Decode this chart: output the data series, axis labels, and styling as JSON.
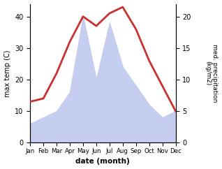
{
  "months": [
    "Jan",
    "Feb",
    "Mar",
    "Apr",
    "May",
    "Jun",
    "Jul",
    "Aug",
    "Sep",
    "Oct",
    "Nov",
    "Dec"
  ],
  "temperature": [
    13,
    14,
    22,
    32,
    40,
    37,
    41,
    43,
    36,
    26,
    18,
    10
  ],
  "precipitation": [
    3,
    4,
    5,
    8,
    20,
    10,
    19,
    12,
    9,
    6,
    4,
    5
  ],
  "temp_color": "#c93030",
  "precip_fill_color": "#c5cdf0",
  "background_color": "#ffffff",
  "temp_ylim": [
    0,
    44
  ],
  "precip_ylim": [
    0,
    22
  ],
  "temp_yticks": [
    0,
    10,
    20,
    30,
    40
  ],
  "precip_yticks": [
    0,
    5,
    10,
    15,
    20
  ],
  "xlabel": "date (month)",
  "ylabel_left": "max temp (C)",
  "ylabel_right": "med. precipitation\n(kg/m2)"
}
